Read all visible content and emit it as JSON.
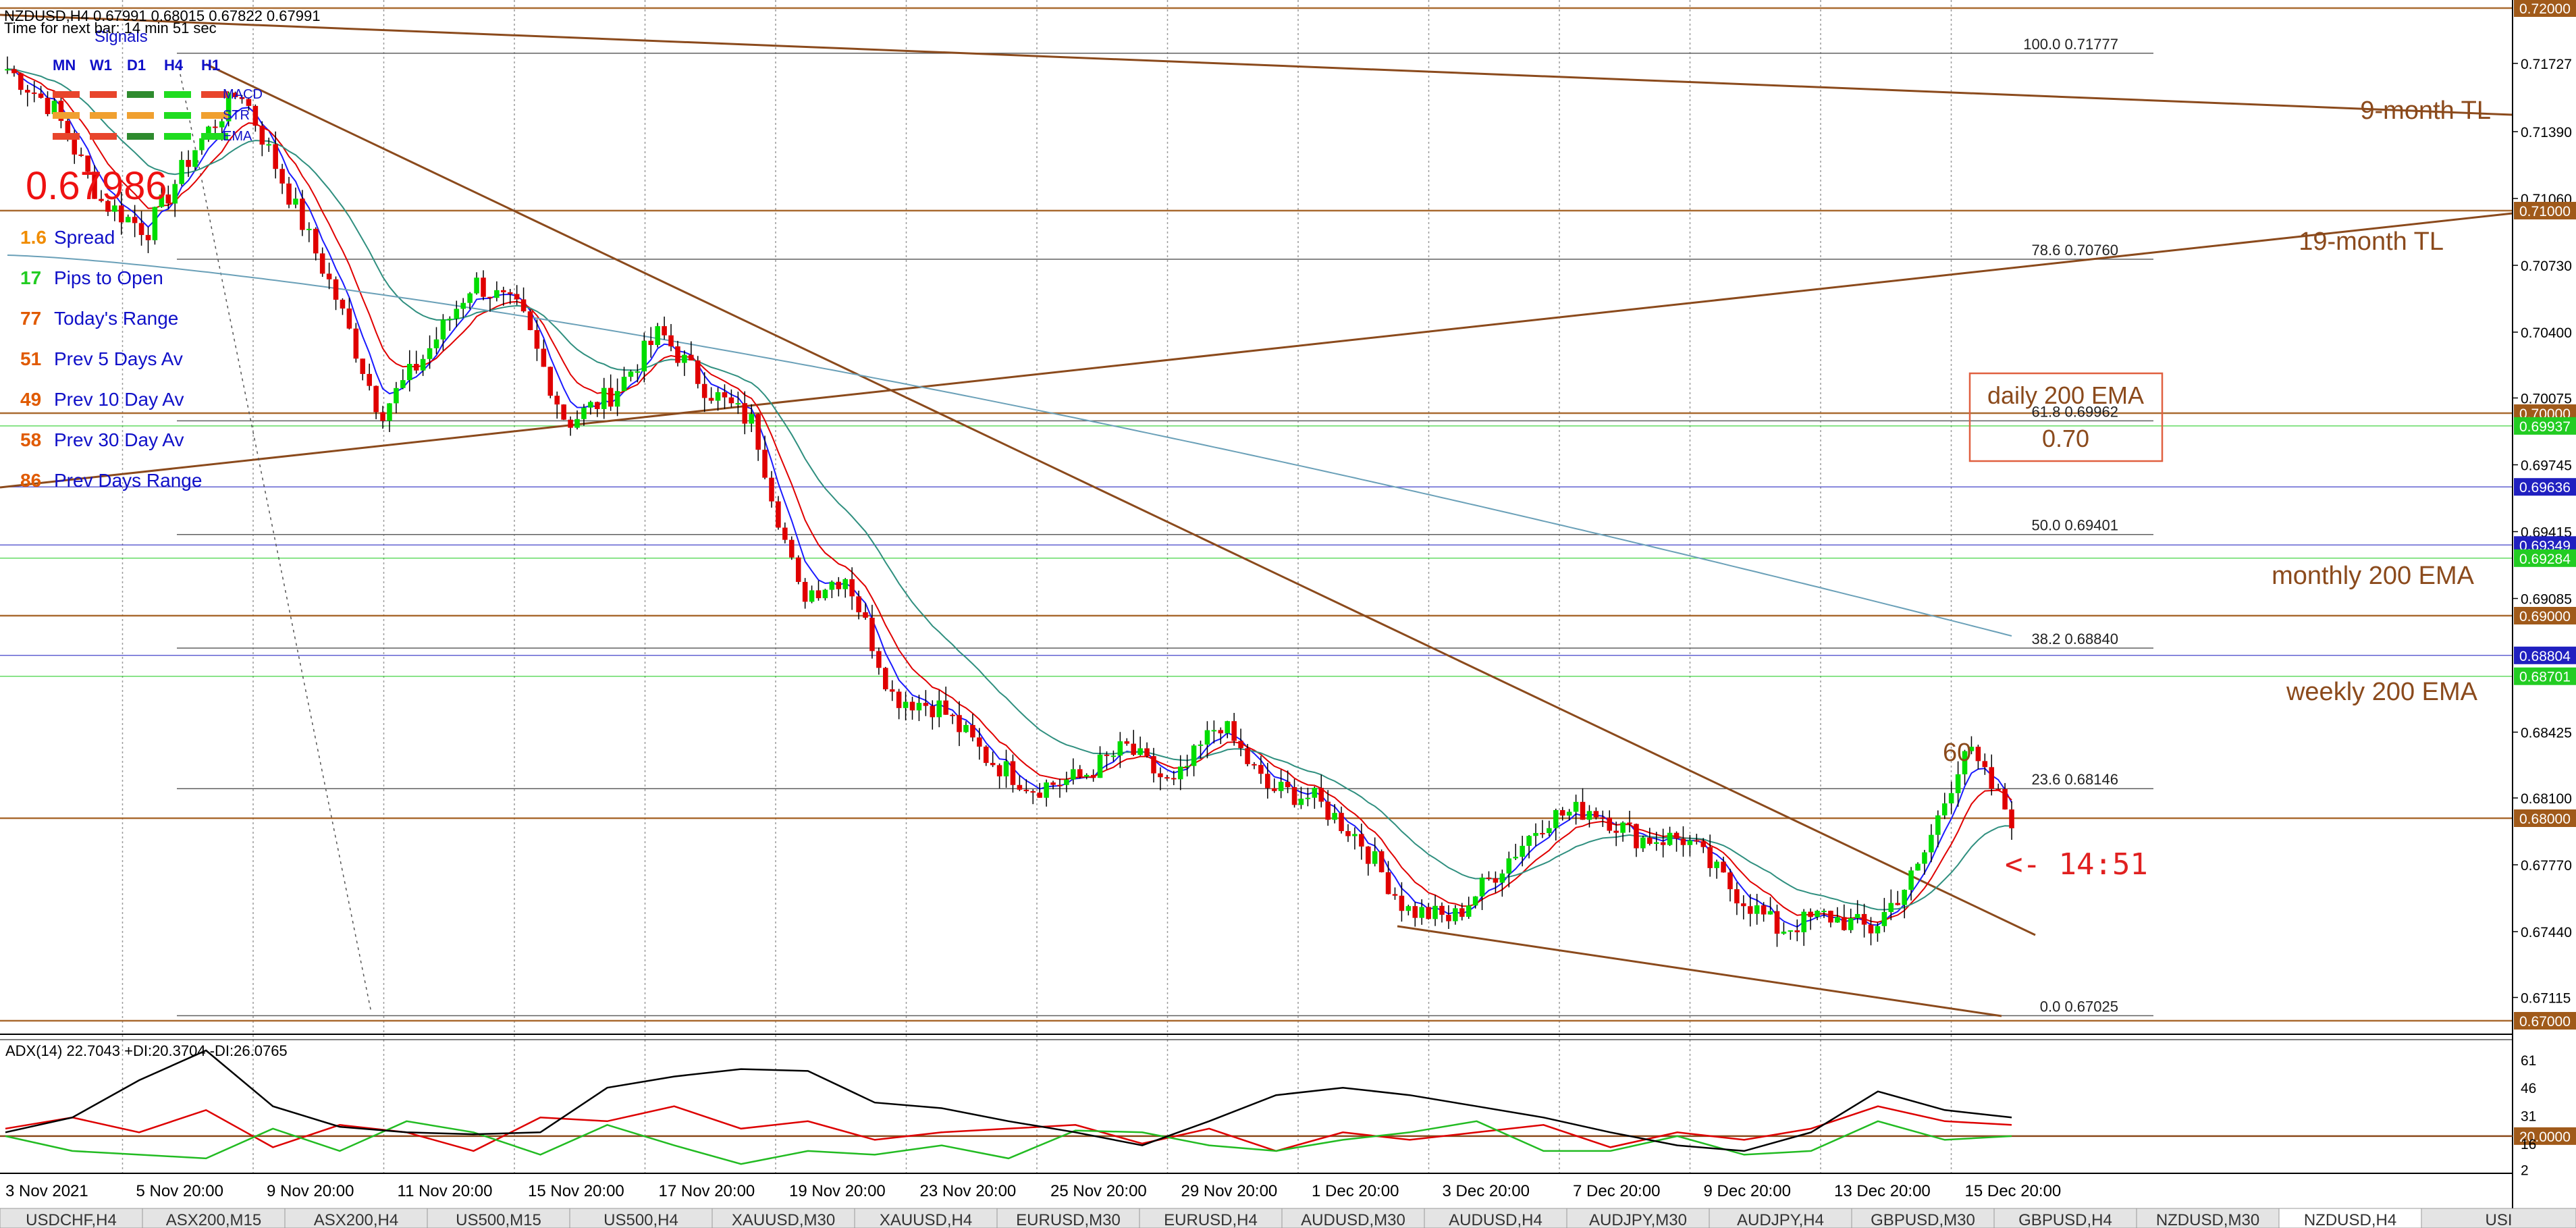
{
  "header": {
    "title": "NZDUSD,H4  0.67991 0.68015 0.67822 0.67991",
    "timer": "Time for next bar: 14 min 51 sec"
  },
  "signals": {
    "title": "Signals",
    "timeframes": [
      "MN",
      "W1",
      "D1",
      "H4",
      "H1"
    ],
    "indicators": [
      "MACD",
      "STR",
      "EMA"
    ],
    "grid": [
      [
        "#e8452c",
        "#e8452c",
        "#2e8b2e",
        "#1fdc1f",
        "#e8452c"
      ],
      [
        "#f0a030",
        "#f0a030",
        "#f0a030",
        "#1fdc1f",
        "#f0a030"
      ],
      [
        "#e8452c",
        "#e8452c",
        "#2e8b2e",
        "#1fdc1f",
        "#1fdc1f"
      ]
    ]
  },
  "price_big": "0.67986",
  "stats": [
    {
      "value": "1.6",
      "label": "Spread",
      "value_color": "#f08c00",
      "label_color": "#1010c8"
    },
    {
      "value": "17",
      "label": "Pips to Open",
      "value_color": "#22cc22",
      "label_color": "#1010c8"
    },
    {
      "value": "77",
      "label": "Today's Range",
      "value_color": "#e05a00",
      "label_color": "#1010c8"
    },
    {
      "value": "51",
      "label": "Prev 5 Days Av",
      "value_color": "#e05a00",
      "label_color": "#1010c8"
    },
    {
      "value": "49",
      "label": "Prev 10 Day Av",
      "value_color": "#e05a00",
      "label_color": "#1010c8"
    },
    {
      "value": "58",
      "label": "Prev 30 Day Av",
      "value_color": "#e05a00",
      "label_color": "#1010c8"
    },
    {
      "value": "86",
      "label": "Prev Days Range",
      "value_color": "#e05a00",
      "label_color": "#1010c8"
    }
  ],
  "colors": {
    "bull": "#00dd00",
    "bear": "#e00000",
    "ema_fast": "#1a1aff",
    "ema_mid": "#e00000",
    "ema_slow": "#2f8f7f",
    "ema_200": "#6aa0b8",
    "trendline": "#8b4a1c",
    "level": "#8b4a1c",
    "fib": "#606060",
    "adx": "#000000",
    "di_plus": "#22bb22",
    "di_minus": "#dd0000"
  },
  "chart_data": {
    "type": "candlestick",
    "symbol": "NZDUSD",
    "timeframe": "H4",
    "ylim": [
      0.67,
      0.72
    ],
    "price_ticks": [
      "0.72000",
      "0.71727",
      "0.71390",
      "0.71060",
      "0.71000",
      "0.70730",
      "0.70400",
      "0.70075",
      "0.70000",
      "0.69937",
      "0.69745",
      "0.69636",
      "0.69415",
      "0.69349",
      "0.69284",
      "0.69085",
      "0.69000",
      "0.68804",
      "0.68701",
      "0.68425",
      "0.68100",
      "0.68000",
      "0.67770",
      "0.67440",
      "0.67115",
      "0.67000"
    ],
    "highlight_ticks": [
      {
        "label": "0.72000",
        "price": 0.72,
        "color": "#a05a1a"
      },
      {
        "label": "0.71000",
        "price": 0.71,
        "color": "#a05a1a"
      },
      {
        "label": "0.70000",
        "price": 0.7,
        "color": "#a05a1a"
      },
      {
        "label": "0.69937",
        "price": 0.69937,
        "color": "#22cc22"
      },
      {
        "label": "0.69636",
        "price": 0.69636,
        "color": "#2020c0"
      },
      {
        "label": "0.69349",
        "price": 0.69349,
        "color": "#2020c0"
      },
      {
        "label": "0.69284",
        "price": 0.69284,
        "color": "#22cc22"
      },
      {
        "label": "0.69000",
        "price": 0.69,
        "color": "#a05a1a"
      },
      {
        "label": "0.68804",
        "price": 0.68804,
        "color": "#2020c0"
      },
      {
        "label": "0.68701",
        "price": 0.68701,
        "color": "#22cc22"
      },
      {
        "label": "0.68000",
        "price": 0.68,
        "color": "#a05a1a"
      },
      {
        "label": "0.67000",
        "price": 0.67,
        "color": "#a05a1a"
      }
    ],
    "x_labels": [
      "3 Nov 2021",
      "5 Nov 20:00",
      "9 Nov 20:00",
      "11 Nov 20:00",
      "15 Nov 20:00",
      "17 Nov 20:00",
      "19 Nov 20:00",
      "23 Nov 20:00",
      "25 Nov 20:00",
      "29 Nov 20:00",
      "1 Dec 20:00",
      "3 Dec 20:00",
      "7 Dec 20:00",
      "9 Dec 20:00",
      "13 Dec 20:00",
      "15 Dec 20:00"
    ],
    "fib_levels": [
      {
        "label": "100.0",
        "price": 0.71777
      },
      {
        "label": "78.6",
        "price": 0.7076
      },
      {
        "label": "61.8",
        "price": 0.69962
      },
      {
        "label": "50.0",
        "price": 0.69401
      },
      {
        "label": "38.2",
        "price": 0.6884
      },
      {
        "label": "23.6",
        "price": 0.68146
      },
      {
        "label": "0.0",
        "price": 0.67025
      }
    ],
    "annotations": {
      "tl9": "9-month TL",
      "tl19": "19-month TL",
      "daily_ema": "daily 200 EMA",
      "daily_ema_value": "0.70",
      "monthly_ema": "monthly 200 EMA",
      "weekly_ema": "weekly 200 EMA",
      "sixty": "60",
      "countdown": "<- 14:51"
    },
    "price_path": [
      0.717,
      0.715,
      0.7105,
      0.709,
      0.713,
      0.716,
      0.711,
      0.706,
      0.7,
      0.703,
      0.7065,
      0.705,
      0.6995,
      0.701,
      0.704,
      0.7012,
      0.6995,
      0.691,
      0.692,
      0.686,
      0.6855,
      0.683,
      0.6815,
      0.682,
      0.6835,
      0.6815,
      0.6848,
      0.6815,
      0.681,
      0.679,
      0.6755,
      0.675,
      0.6775,
      0.68,
      0.6805,
      0.679,
      0.679,
      0.6765,
      0.6745,
      0.6752,
      0.6745,
      0.6775,
      0.6835,
      0.68
    ],
    "adx_panel": {
      "title": "ADX(14) 22.7043 +DI:20.3704 -DI:26.0765",
      "adx": 22.7043,
      "di_plus": 20.3704,
      "di_minus": 26.0765,
      "ylim": [
        0,
        70
      ],
      "ticks": [
        "61",
        "46",
        "31",
        "20.0000",
        "16",
        "2"
      ],
      "level": 20,
      "adx_path": [
        22,
        30,
        50,
        66,
        36,
        25,
        22,
        21,
        22,
        46,
        52,
        56,
        55,
        38,
        35,
        28,
        22,
        15,
        28,
        42,
        46,
        42,
        36,
        30,
        22,
        15,
        12,
        22,
        44,
        34,
        30
      ],
      "plus_path": [
        20,
        12,
        10,
        8,
        24,
        12,
        28,
        22,
        10,
        26,
        15,
        5,
        12,
        10,
        15,
        8,
        23,
        22,
        15,
        12,
        18,
        22,
        28,
        12,
        12,
        20,
        10,
        12,
        28,
        18,
        20
      ],
      "minus_path": [
        24,
        30,
        22,
        34,
        14,
        26,
        22,
        12,
        30,
        28,
        36,
        24,
        28,
        18,
        22,
        24,
        26,
        16,
        24,
        12,
        22,
        18,
        22,
        26,
        14,
        22,
        18,
        24,
        36,
        28,
        26
      ]
    }
  },
  "tabs": [
    "USDCHF,H4",
    "ASX200,M15",
    "ASX200,H4",
    "US500,M15",
    "US500,H4",
    "XAUUSD,M30",
    "XAUUSD,H4",
    "EURUSD,M30",
    "EURUSD,H4",
    "AUDUSD,M30",
    "AUDUSD,H4",
    "AUDJPY,M30",
    "AUDJPY,H4",
    "GBPUSD,M30",
    "GBPUSD,H4",
    "NZDUSD,M30",
    "NZDUSD,H4",
    "USI"
  ],
  "active_tab": "NZDUSD,H4"
}
